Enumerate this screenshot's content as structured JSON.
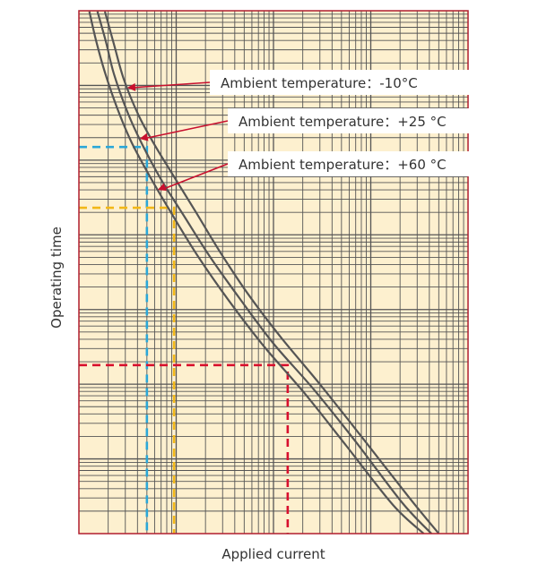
{
  "chart_data": {
    "type": "line",
    "title": "",
    "xlabel": "Applied current",
    "ylabel": "Operating time",
    "x_scale": "log",
    "y_scale": "log",
    "xlim": [
      1,
      10000
    ],
    "ylim": [
      1,
      10000000
    ],
    "x_tick_labels": false,
    "y_tick_labels": false,
    "grid": true,
    "legend": "none",
    "colors": {
      "background": "#fdf0cf",
      "grid": "#555555",
      "frame": "#b01e2e",
      "curves": "#555555",
      "annotation_arrow": "#c8102e"
    },
    "series": [
      {
        "temp": "-10°C",
        "x": [
          1.85,
          2.3,
          2.9,
          4.1,
          6.0,
          9.5,
          16,
          28,
          55,
          120,
          300,
          800,
          2500,
          5000
        ],
        "y": [
          9800000,
          3500000,
          1200000,
          400000,
          160000,
          60000,
          20000,
          6000,
          1600,
          420,
          100,
          20,
          3,
          1
        ]
      },
      {
        "temp": "+25°C",
        "x": [
          1.55,
          1.9,
          2.3,
          3.2,
          4.5,
          7.0,
          12,
          22,
          45,
          100,
          260,
          700,
          2100,
          4200
        ],
        "y": [
          9800000,
          3800000,
          1400000,
          420000,
          160000,
          55000,
          18000,
          5200,
          1400,
          350,
          85,
          17,
          2.6,
          1
        ]
      },
      {
        "temp": "+60°C",
        "x": [
          1.28,
          1.5,
          1.85,
          2.5,
          3.5,
          5.5,
          9.5,
          17,
          35,
          80,
          210,
          560,
          1700,
          3500
        ],
        "y": [
          9800000,
          4000000,
          1500000,
          480000,
          170000,
          57000,
          17000,
          5000,
          1300,
          320,
          75,
          15,
          2.4,
          1
        ]
      }
    ],
    "reference_lines": [
      {
        "color": "#2aa7d8",
        "current": 5.0,
        "time": 150000
      },
      {
        "color": "#f2b818",
        "current": 9.5,
        "time": 23000
      },
      {
        "color": "#d8102e",
        "current": 140,
        "time": 180
      }
    ],
    "annotations": [
      {
        "text": "Ambient temperature：-10°C",
        "points_to": "-10°C"
      },
      {
        "text": "Ambient temperature：+25 °C",
        "points_to": "+25°C"
      },
      {
        "text": "Ambient temperature：+60 °C",
        "points_to": "+60°C"
      }
    ]
  }
}
